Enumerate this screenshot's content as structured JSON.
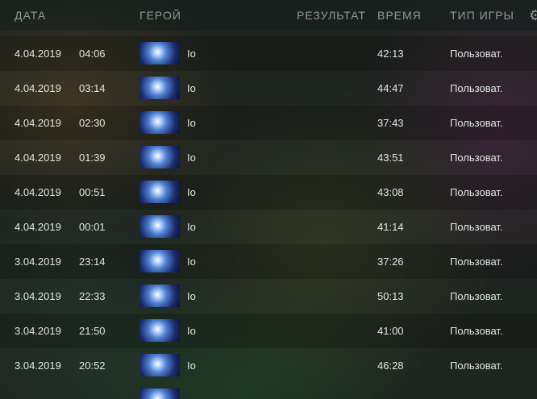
{
  "header": {
    "date": "ДАТА",
    "hero": "ГЕРОЙ",
    "result": "РЕЗУЛЬТАТ",
    "duration": "ВРЕМЯ",
    "game_type": "ТИП ИГРЫ",
    "settings_icon": "gear-icon"
  },
  "matches": [
    {
      "date": "4.04.2019",
      "time": "04:06",
      "hero": "Io",
      "result": "",
      "duration": "42:13",
      "game_type": "Пользоват."
    },
    {
      "date": "4.04.2019",
      "time": "03:14",
      "hero": "Io",
      "result": "",
      "duration": "44:47",
      "game_type": "Пользоват."
    },
    {
      "date": "4.04.2019",
      "time": "02:30",
      "hero": "Io",
      "result": "",
      "duration": "37:43",
      "game_type": "Пользоват."
    },
    {
      "date": "4.04.2019",
      "time": "01:39",
      "hero": "Io",
      "result": "",
      "duration": "43:51",
      "game_type": "Пользоват."
    },
    {
      "date": "4.04.2019",
      "time": "00:51",
      "hero": "Io",
      "result": "",
      "duration": "43:08",
      "game_type": "Пользоват."
    },
    {
      "date": "4.04.2019",
      "time": "00:01",
      "hero": "Io",
      "result": "",
      "duration": "41:14",
      "game_type": "Пользоват."
    },
    {
      "date": "3.04.2019",
      "time": "23:14",
      "hero": "Io",
      "result": "",
      "duration": "37:26",
      "game_type": "Пользоват."
    },
    {
      "date": "3.04.2019",
      "time": "22:33",
      "hero": "Io",
      "result": "",
      "duration": "50:13",
      "game_type": "Пользоват."
    },
    {
      "date": "3.04.2019",
      "time": "21:50",
      "hero": "Io",
      "result": "",
      "duration": "41:00",
      "game_type": "Пользоват."
    },
    {
      "date": "3.04.2019",
      "time": "20:52",
      "hero": "Io",
      "result": "",
      "duration": "46:28",
      "game_type": "Пользоват."
    }
  ]
}
